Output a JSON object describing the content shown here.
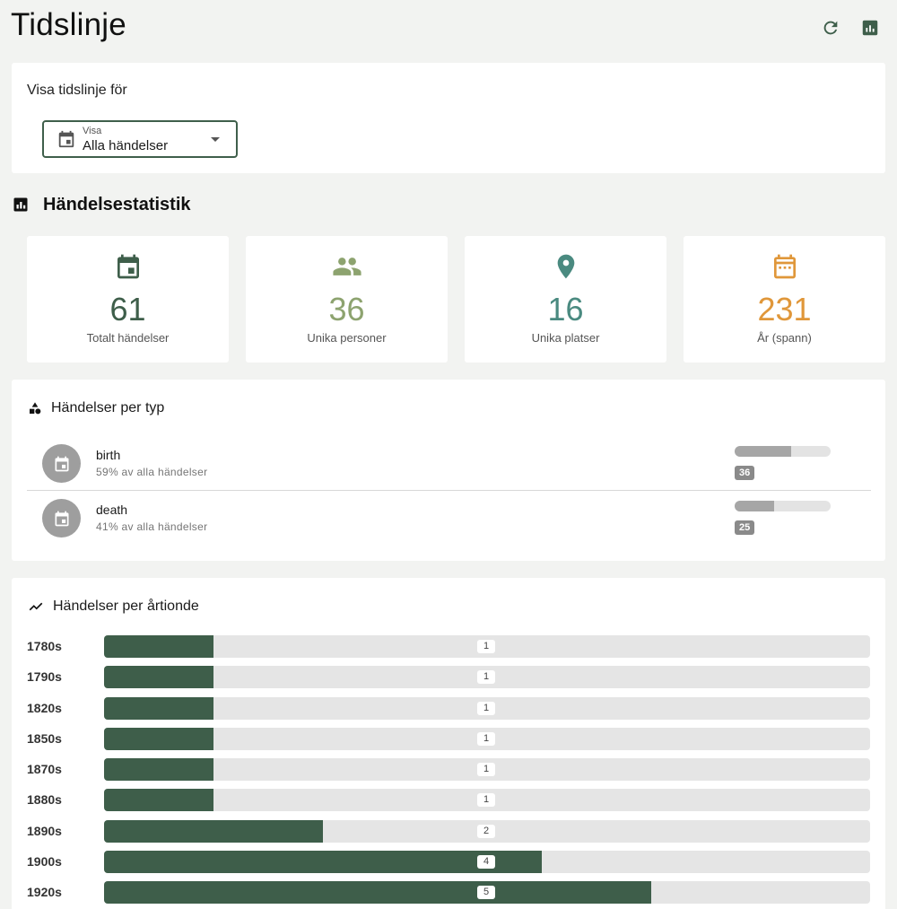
{
  "header": {
    "title": "Tidslinje",
    "refresh_icon": "refresh-icon",
    "stats_icon": "bar-chart-icon"
  },
  "filter": {
    "label": "Visa tidslinje för",
    "select_small_label": "Visa",
    "select_value": "Alla händelser",
    "select_icon": "calendar-icon"
  },
  "stats_section": {
    "title": "Händelsestatistik",
    "cards": [
      {
        "value": "61",
        "label": "Totalt händelser",
        "icon": "calendar-event-icon",
        "color": "#3e5e4a"
      },
      {
        "value": "36",
        "label": "Unika personer",
        "icon": "people-icon",
        "color": "#8da36f"
      },
      {
        "value": "16",
        "label": "Unika platser",
        "icon": "location-pin-icon",
        "color": "#4a8a80"
      },
      {
        "value": "231",
        "label": "År (spann)",
        "icon": "calendar-range-icon",
        "color": "#e0973a"
      }
    ]
  },
  "types_section": {
    "title": "Händelser per typ",
    "items": [
      {
        "name": "birth",
        "sub": "59% av alla händelser",
        "count": "36",
        "fraction": 0.59
      },
      {
        "name": "death",
        "sub": "41% av alla händelser",
        "count": "25",
        "fraction": 0.41
      }
    ]
  },
  "decades_section": {
    "title": "Händelser per årtionde",
    "max": 7,
    "rows": [
      {
        "label": "1780s",
        "count": "1",
        "value": 1
      },
      {
        "label": "1790s",
        "count": "1",
        "value": 1
      },
      {
        "label": "1820s",
        "count": "1",
        "value": 1
      },
      {
        "label": "1850s",
        "count": "1",
        "value": 1
      },
      {
        "label": "1870s",
        "count": "1",
        "value": 1
      },
      {
        "label": "1880s",
        "count": "1",
        "value": 1
      },
      {
        "label": "1890s",
        "count": "2",
        "value": 2
      },
      {
        "label": "1900s",
        "count": "4",
        "value": 4
      },
      {
        "label": "1920s",
        "count": "5",
        "value": 5
      }
    ]
  }
}
